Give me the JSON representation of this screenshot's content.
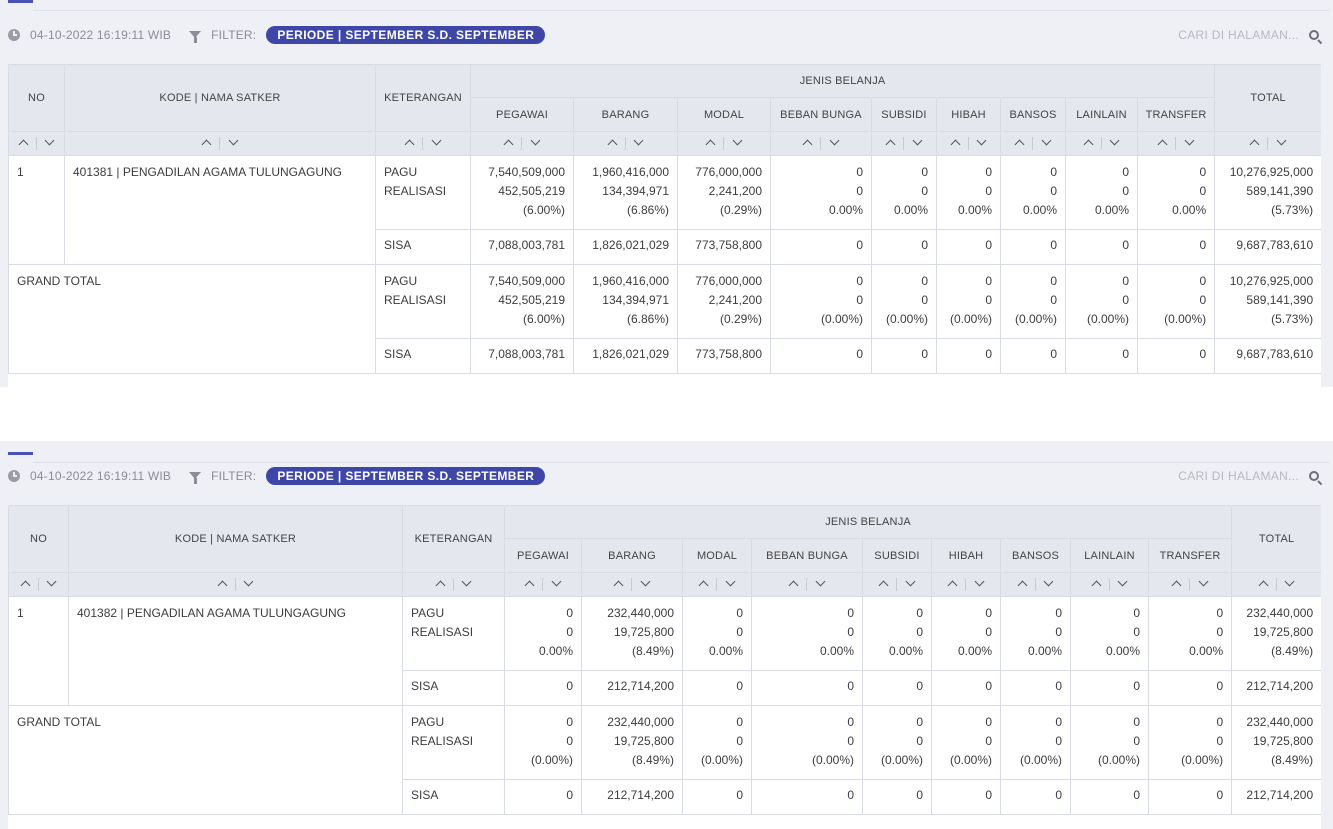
{
  "reports": [
    {
      "timestamp": "04-10-2022 16:19:11 WIB",
      "filter_label": "FILTER:",
      "filter_value": "PERIODE | SEPTEMBER S.D. SEPTEMBER",
      "search_placeholder": "CARI DI HALAMAN...",
      "headers": {
        "no": "NO",
        "kode": "KODE | NAMA SATKER",
        "keterangan": "KETERANGAN",
        "group": "JENIS BELANJA",
        "total": "TOTAL",
        "columns": [
          "PEGAWAI",
          "BARANG",
          "MODAL",
          "BEBAN BUNGA",
          "SUBSIDI",
          "HIBAH",
          "BANSOS",
          "LAINLAIN",
          "TRANSFER"
        ]
      },
      "rows": [
        {
          "no": "1",
          "name": "401381 | PENGADILAN AGAMA TULUNGAGUNG",
          "pagu_label": "PAGU",
          "real_label": "REALISASI",
          "sisa_label": "SISA",
          "cells": [
            [
              "7,540,509,000",
              "452,505,219",
              "(6.00%)",
              "7,088,003,781"
            ],
            [
              "1,960,416,000",
              "134,394,971",
              "(6.86%)",
              "1,826,021,029"
            ],
            [
              "776,000,000",
              "2,241,200",
              "(0.29%)",
              "773,758,800"
            ],
            [
              "0",
              "0",
              "0.00%",
              "0"
            ],
            [
              "0",
              "0",
              "0.00%",
              "0"
            ],
            [
              "0",
              "0",
              "0.00%",
              "0"
            ],
            [
              "0",
              "0",
              "0.00%",
              "0"
            ],
            [
              "0",
              "0",
              "0.00%",
              "0"
            ],
            [
              "0",
              "0",
              "0.00%",
              "0"
            ]
          ],
          "total": [
            "10,276,925,000",
            "589,141,390",
            "(5.73%)",
            "9,687,783,610"
          ]
        }
      ],
      "grand": {
        "label": "GRAND TOTAL",
        "pagu_label": "PAGU",
        "real_label": "REALISASI",
        "sisa_label": "SISA",
        "cells": [
          [
            "7,540,509,000",
            "452,505,219",
            "(6.00%)",
            "7,088,003,781"
          ],
          [
            "1,960,416,000",
            "134,394,971",
            "(6.86%)",
            "1,826,021,029"
          ],
          [
            "776,000,000",
            "2,241,200",
            "(0.29%)",
            "773,758,800"
          ],
          [
            "0",
            "0",
            "(0.00%)",
            "0"
          ],
          [
            "0",
            "0",
            "(0.00%)",
            "0"
          ],
          [
            "0",
            "0",
            "(0.00%)",
            "0"
          ],
          [
            "0",
            "0",
            "(0.00%)",
            "0"
          ],
          [
            "0",
            "0",
            "(0.00%)",
            "0"
          ],
          [
            "0",
            "0",
            "(0.00%)",
            "0"
          ]
        ],
        "total": [
          "10,276,925,000",
          "589,141,390",
          "(5.73%)",
          "9,687,783,610"
        ]
      }
    },
    {
      "timestamp": "04-10-2022 16:19:11 WIB",
      "filter_label": "FILTER:",
      "filter_value": "PERIODE | SEPTEMBER S.D. SEPTEMBER",
      "search_placeholder": "CARI DI HALAMAN...",
      "headers": {
        "no": "NO",
        "kode": "KODE | NAMA SATKER",
        "keterangan": "KETERANGAN",
        "group": "JENIS BELANJA",
        "total": "TOTAL",
        "columns": [
          "PEGAWAI",
          "BARANG",
          "MODAL",
          "BEBAN BUNGA",
          "SUBSIDI",
          "HIBAH",
          "BANSOS",
          "LAINLAIN",
          "TRANSFER"
        ]
      },
      "rows": [
        {
          "no": "1",
          "name": "401382 | PENGADILAN AGAMA TULUNGAGUNG",
          "pagu_label": "PAGU",
          "real_label": "REALISASI",
          "sisa_label": "SISA",
          "cells": [
            [
              "0",
              "0",
              "0.00%",
              "0"
            ],
            [
              "232,440,000",
              "19,725,800",
              "(8.49%)",
              "212,714,200"
            ],
            [
              "0",
              "0",
              "0.00%",
              "0"
            ],
            [
              "0",
              "0",
              "0.00%",
              "0"
            ],
            [
              "0",
              "0",
              "0.00%",
              "0"
            ],
            [
              "0",
              "0",
              "0.00%",
              "0"
            ],
            [
              "0",
              "0",
              "0.00%",
              "0"
            ],
            [
              "0",
              "0",
              "0.00%",
              "0"
            ],
            [
              "0",
              "0",
              "0.00%",
              "0"
            ]
          ],
          "total": [
            "232,440,000",
            "19,725,800",
            "(8.49%)",
            "212,714,200"
          ]
        }
      ],
      "grand": {
        "label": "GRAND TOTAL",
        "pagu_label": "PAGU",
        "real_label": "REALISASI",
        "sisa_label": "SISA",
        "cells": [
          [
            "0",
            "0",
            "(0.00%)",
            "0"
          ],
          [
            "232,440,000",
            "19,725,800",
            "(8.49%)",
            "212,714,200"
          ],
          [
            "0",
            "0",
            "(0.00%)",
            "0"
          ],
          [
            "0",
            "0",
            "(0.00%)",
            "0"
          ],
          [
            "0",
            "0",
            "(0.00%)",
            "0"
          ],
          [
            "0",
            "0",
            "(0.00%)",
            "0"
          ],
          [
            "0",
            "0",
            "(0.00%)",
            "0"
          ],
          [
            "0",
            "0",
            "(0.00%)",
            "0"
          ],
          [
            "0",
            "0",
            "(0.00%)",
            "0"
          ]
        ],
        "total": [
          "232,440,000",
          "19,725,800",
          "(8.49%)",
          "212,714,200"
        ]
      }
    }
  ]
}
